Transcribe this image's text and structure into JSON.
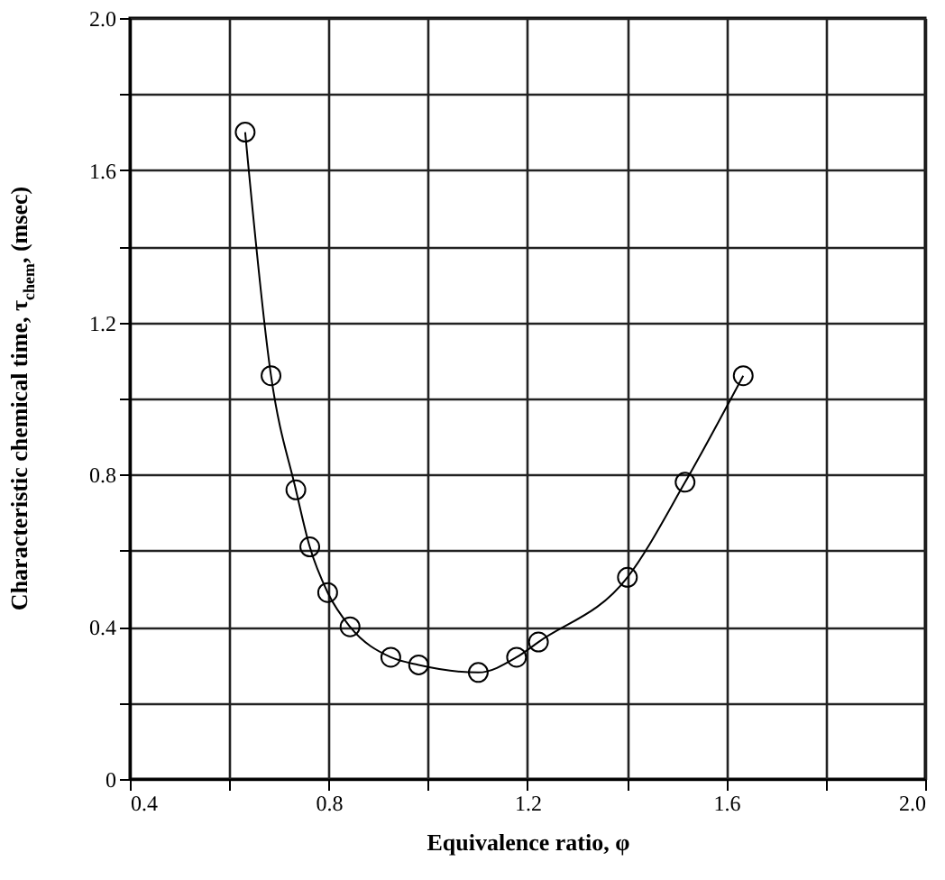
{
  "chart_data": {
    "type": "line",
    "xlabel": "Equivalence ratio, φ",
    "ylabel": "Characteristic chemical time, τ$_{chem}$, (msec)",
    "x": [
      0.632,
      0.684,
      0.734,
      0.762,
      0.798,
      0.843,
      0.925,
      0.981,
      1.101,
      1.178,
      1.222,
      1.401,
      1.517,
      1.634
    ],
    "series": [
      {
        "color": "#000000",
        "values": [
          1.7,
          1.06,
          0.76,
          0.61,
          0.49,
          0.4,
          0.32,
          0.3,
          0.28,
          0.32,
          0.36,
          0.53,
          0.78,
          1.06
        ]
      }
    ],
    "xlim": [
      0.4,
      2.0
    ],
    "ylim": [
      0,
      2.0
    ],
    "xticks": [
      0.4,
      {
        "value": 0.6,
        "label": null
      },
      0.8,
      {
        "value": 1.0,
        "label": null
      },
      1.2,
      {
        "value": 1.4,
        "label": null
      },
      1.6,
      {
        "value": 1.8,
        "label": null
      },
      {
        "value": 2.0,
        "label": "2.0"
      }
    ],
    "yticks": [
      0,
      {
        "value": 0.2,
        "label": null
      },
      0.4,
      {
        "value": 0.6,
        "label": null
      },
      0.8,
      {
        "value": 1.0,
        "label": null
      },
      1.2,
      {
        "value": 1.4,
        "label": null
      },
      1.6,
      {
        "value": 1.8,
        "label": null
      },
      {
        "value": 2.0,
        "label": "2.0"
      }
    ],
    "grid": true,
    "marker": "circle",
    "line_style": "solid"
  }
}
